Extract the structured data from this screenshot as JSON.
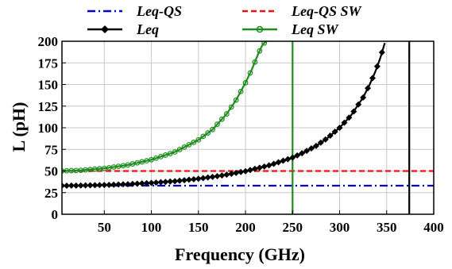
{
  "chart_data": {
    "type": "line",
    "xlabel": "Frequency (GHz)",
    "ylabel": "L (pH)",
    "xlim": [
      5,
      400
    ],
    "ylim": [
      0,
      200
    ],
    "xticks": [
      50,
      100,
      150,
      200,
      250,
      300,
      350,
      400
    ],
    "yticks": [
      0,
      25,
      50,
      75,
      100,
      125,
      150,
      175,
      200
    ],
    "grid": true,
    "legend_position": "top",
    "series": [
      {
        "name": "Leq-QS",
        "color": "#0000cc",
        "style": "dash-dot",
        "marker": "none",
        "x": [
          5,
          400
        ],
        "y": [
          33,
          33
        ]
      },
      {
        "name": "Leq-QS SW",
        "color": "#ee1111",
        "style": "dashed",
        "marker": "none",
        "x": [
          5,
          400
        ],
        "y": [
          50,
          50
        ]
      },
      {
        "name": "Leq",
        "color": "#000000",
        "style": "solid",
        "marker": "diamond",
        "x": [
          5,
          25,
          50,
          75,
          100,
          125,
          150,
          175,
          200,
          225,
          250,
          262,
          275,
          287,
          300,
          312,
          325,
          332,
          338,
          343,
          348
        ],
        "y": [
          33,
          33.2,
          33.8,
          34.8,
          36.2,
          38.2,
          41,
          44.8,
          49.8,
          56.5,
          65.5,
          71.5,
          79,
          88,
          100,
          114,
          135,
          150,
          165,
          180,
          198
        ],
        "asymptote_x": 374
      },
      {
        "name": "Leq SW",
        "color": "#1e8c1e",
        "style": "solid",
        "marker": "circle",
        "x": [
          5,
          25,
          50,
          75,
          100,
          125,
          150,
          165,
          180,
          190,
          200,
          207,
          213,
          218,
          222
        ],
        "y": [
          50,
          50.8,
          53,
          57,
          63,
          72,
          86,
          98,
          116,
          132,
          152,
          168,
          184,
          196,
          200
        ],
        "asymptote_x": 250
      }
    ]
  }
}
